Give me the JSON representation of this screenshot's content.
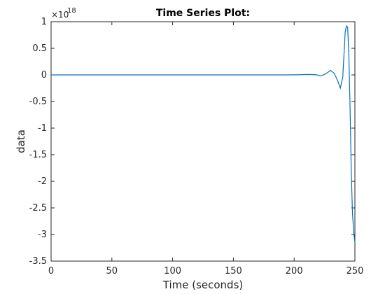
{
  "chart_data": {
    "type": "line",
    "title": "Time Series Plot:",
    "xlabel": "Time (seconds)",
    "ylabel": "data",
    "xlim": [
      0,
      250
    ],
    "ylim": [
      -3.5,
      1
    ],
    "x_ticks": [
      0,
      50,
      100,
      150,
      200,
      250
    ],
    "y_ticks": [
      1,
      0.5,
      0,
      -0.5,
      -1,
      -1.5,
      -2,
      -2.5,
      -3,
      -3.5
    ],
    "y_exponent_base": "×10",
    "y_exponent_power": "18",
    "grid": false,
    "color": "#0072BD",
    "series": [
      {
        "x": [
          0,
          50,
          100,
          150,
          195,
          205,
          212,
          218,
          222,
          226,
          230,
          233,
          236,
          238,
          240,
          242,
          243,
          244,
          245,
          246,
          247,
          248,
          249,
          250
        ],
        "y": [
          0,
          0,
          0,
          0,
          0,
          0.003,
          0.008,
          0.003,
          -0.02,
          0.02,
          0.085,
          0.03,
          -0.12,
          -0.25,
          -0.05,
          0.8,
          0.92,
          0.9,
          0.4,
          -0.6,
          -1.8,
          -2.6,
          -2.95,
          -3.15
        ]
      }
    ]
  }
}
